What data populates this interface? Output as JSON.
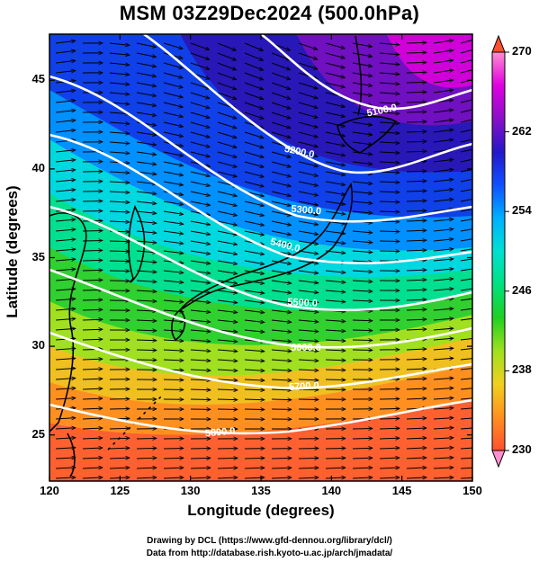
{
  "title": "MSM 03Z29Dec2024 (500.0hPa)",
  "axes": {
    "x": {
      "label": "Longitude (degrees)",
      "ticks": [
        120,
        125,
        130,
        135,
        140,
        145,
        150
      ],
      "range": [
        120,
        150
      ]
    },
    "y": {
      "label": "Latitude  (degrees)",
      "ticks": [
        25,
        30,
        35,
        40,
        45
      ],
      "range": [
        22.4,
        47.6
      ]
    }
  },
  "colorbar": {
    "ticks": [
      270,
      262,
      254,
      246,
      238,
      230
    ],
    "range": [
      230,
      270
    ],
    "colors": [
      "#ff8fd0",
      "#e000e0",
      "#8a10c8",
      "#2418c8",
      "#1050ff",
      "#00b0ff",
      "#00e0d0",
      "#00e080",
      "#20d020",
      "#a0e020",
      "#f0d020",
      "#ff9020",
      "#ff5030"
    ]
  },
  "contours": [
    {
      "label": "5100.0"
    },
    {
      "label": "5200.0"
    },
    {
      "label": "5300.0"
    },
    {
      "label": "5400.0"
    },
    {
      "label": "5500.0"
    },
    {
      "label": "5600.0"
    },
    {
      "label": "5700.0"
    },
    {
      "label": "5800.0"
    }
  ],
  "credits": [
    "Drawing by DCL (https://www.gfd-dennou.org/library/dcl/)",
    "Data from http://database.rish.kyoto-u.ac.jp/arch/jmadata/"
  ]
}
